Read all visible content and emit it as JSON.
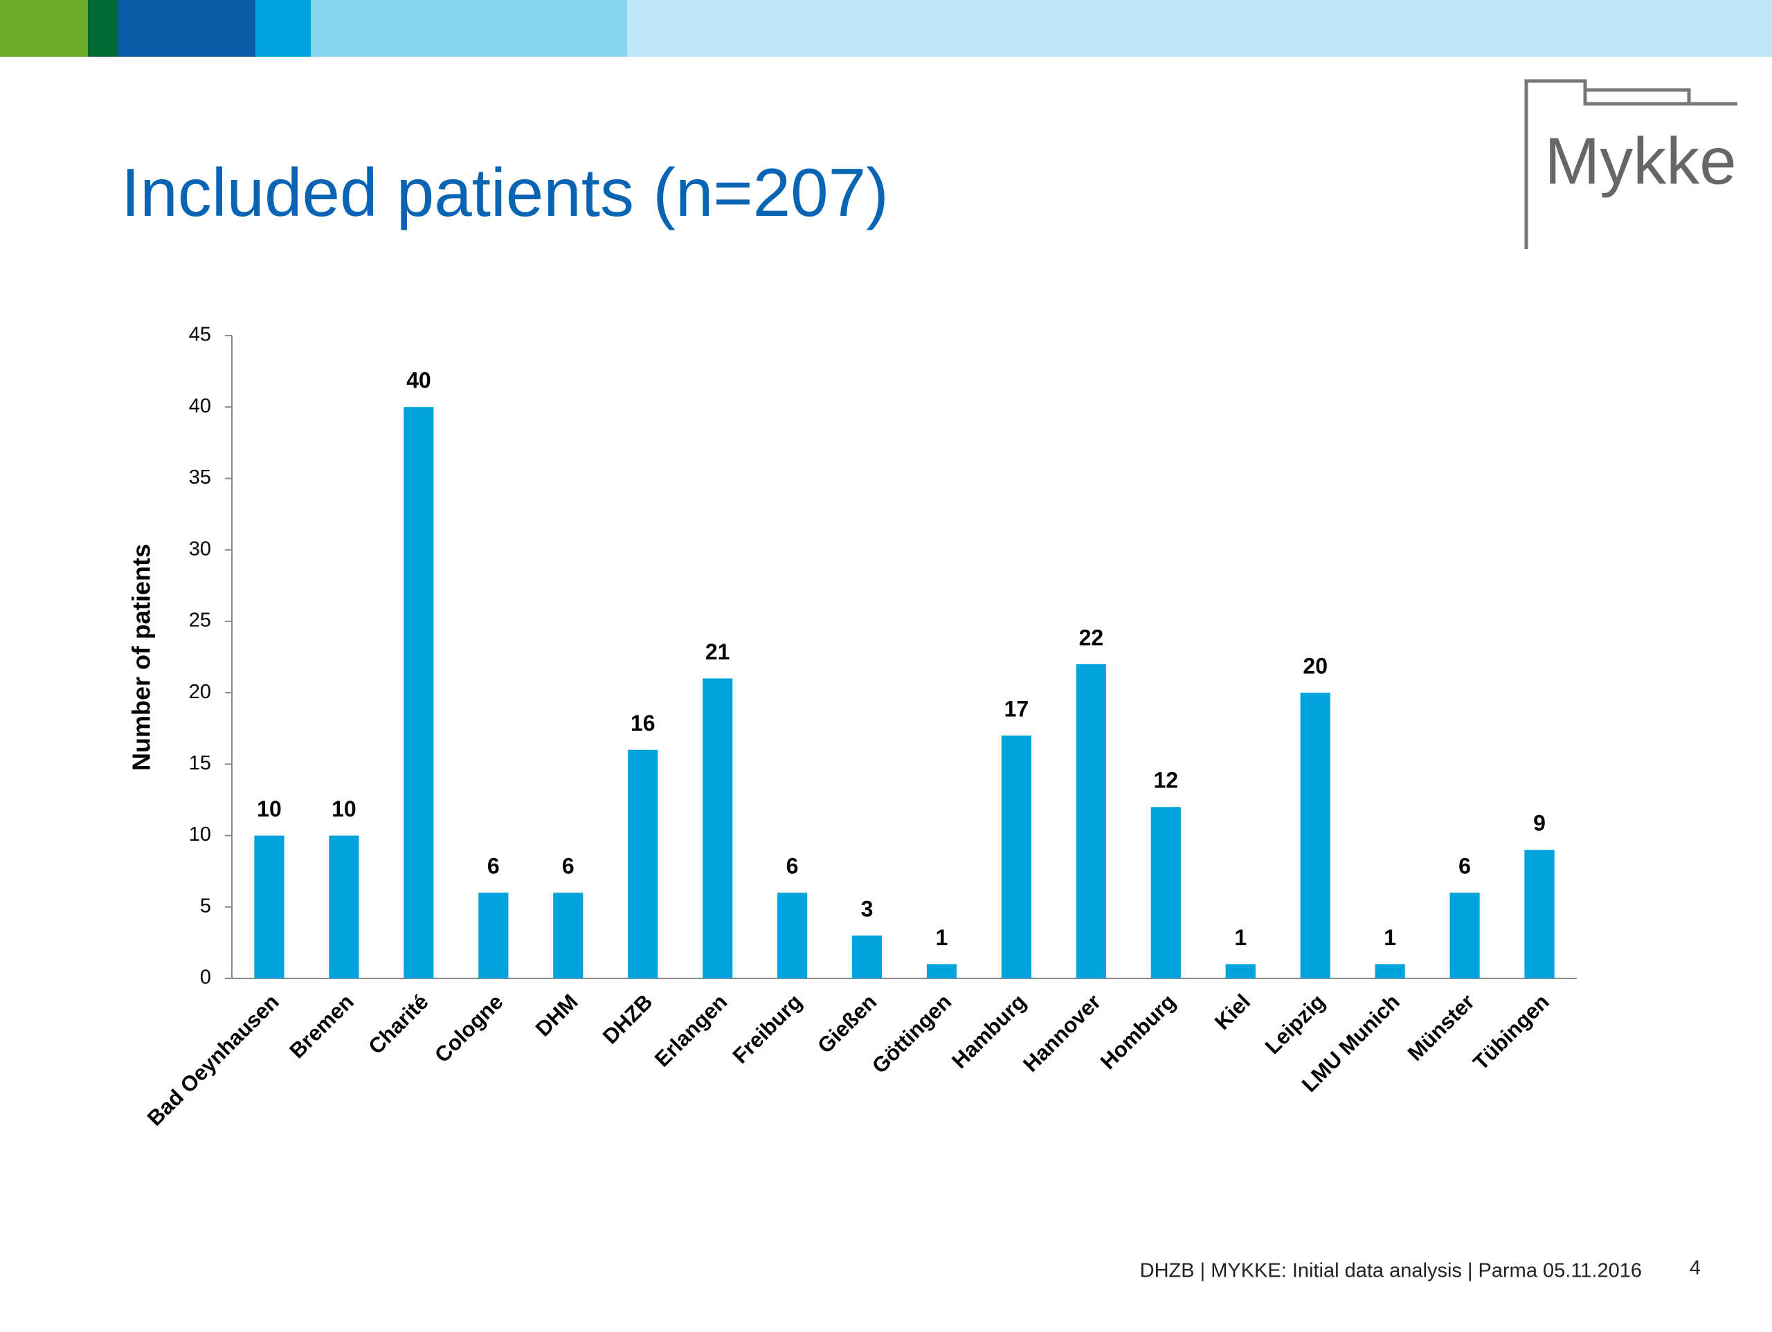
{
  "slide": {
    "logo": "Mykke",
    "footer": "DHZB | MYKKE: Initial data analysis | Parma 05.11.2016",
    "page_number": "4"
  },
  "chart_data": {
    "type": "bar",
    "title": "Included patients (n=207)",
    "y_label": "Number of patients",
    "categories": [
      "Bad Oeynhausen",
      "Bremen",
      "Charité",
      "Cologne",
      "DHM",
      "DHZB",
      "Erlangen",
      "Freiburg",
      "Gießen",
      "Göttingen",
      "Hamburg",
      "Hannover",
      "Homburg",
      "Kiel",
      "Leipzig",
      "LMU Munich",
      "Münster",
      "Tübingen"
    ],
    "values": [
      10,
      10,
      40,
      6,
      6,
      16,
      21,
      6,
      3,
      1,
      17,
      22,
      12,
      1,
      20,
      1,
      6,
      9
    ],
    "color": "#00a3dc",
    "ylim": [
      0,
      45
    ],
    "yticks": [
      0,
      5,
      10,
      15,
      20,
      25,
      30,
      35,
      40,
      45
    ],
    "grid": false
  }
}
